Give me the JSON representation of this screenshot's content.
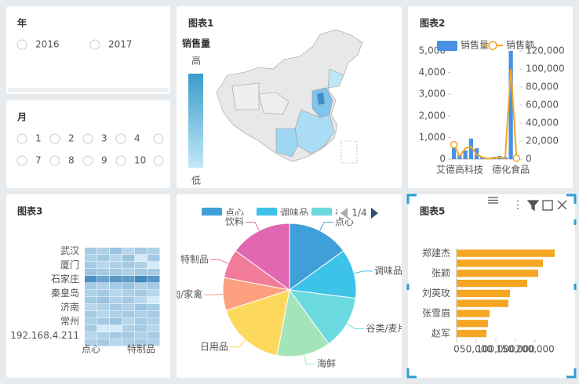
{
  "filters": {
    "year": {
      "title": "年",
      "options": [
        "2016",
        "2017"
      ]
    },
    "month": {
      "title": "月",
      "options": [
        "1",
        "2",
        "3",
        "4",
        "7",
        "8",
        "9",
        "10"
      ]
    }
  },
  "chart_data": [
    {
      "type": "map",
      "title": "图表1",
      "legend_title": "销售量",
      "legend_high": "高",
      "legend_low": "低"
    },
    {
      "type": "combo",
      "title": "图表2",
      "categories": [
        null,
        "艾德高科技",
        null,
        null,
        null,
        null,
        null,
        null,
        null,
        null,
        "德化食品",
        null
      ],
      "series": [
        {
          "name": "销售量",
          "kind": "bar",
          "color": "#4a90e2",
          "values": [
            600,
            200,
            400,
            950,
            500,
            100,
            50,
            100,
            150,
            100,
            5000,
            50
          ]
        },
        {
          "name": "销售额",
          "kind": "line",
          "axis": "y2",
          "color": "#f5a623",
          "values": [
            16000,
            3000,
            12000,
            14000,
            5000,
            2000,
            500,
            1000,
            2000,
            1000,
            100000,
            1000
          ]
        }
      ],
      "ylim": [
        0,
        5000
      ],
      "yticks": [
        0,
        {
          "value": 1000,
          "label": "1,000"
        },
        {
          "value": 2000,
          "label": "2,000"
        },
        {
          "value": 3000,
          "label": "3,000"
        },
        {
          "value": 4000,
          "label": "4,000"
        },
        {
          "value": 5000,
          "label": "5,000"
        }
      ],
      "y2lim": [
        0,
        120000
      ],
      "y2ticks": [
        0,
        {
          "value": 20000,
          "label": "20,000"
        },
        {
          "value": 40000,
          "label": "40,000"
        },
        {
          "value": 60000,
          "label": "60,000"
        },
        {
          "value": 80000,
          "label": "80,000"
        },
        {
          "value": 100000,
          "label": "100,000"
        },
        {
          "value": 120000,
          "label": "120,000"
        }
      ]
    },
    {
      "type": "heatmap",
      "title": "图表3",
      "x_categories": [
        "点心",
        null,
        null,
        null,
        "特制品",
        null
      ],
      "y_categories": [
        "武汉",
        null,
        "厦门",
        null,
        "石家庄",
        null,
        "秦皇岛",
        null,
        "济南",
        null,
        "常州",
        null,
        "192.168.4.211",
        null
      ],
      "color_range": [
        "#dff1fb",
        "#1c6fae"
      ],
      "value_range": [
        0,
        100
      ],
      "values": [
        [
          30,
          25,
          35,
          20,
          30,
          25
        ],
        [
          25,
          30,
          20,
          35,
          5,
          30
        ],
        [
          30,
          20,
          25,
          30,
          25,
          5
        ],
        [
          35,
          30,
          30,
          25,
          30,
          30
        ],
        [
          75,
          60,
          70,
          65,
          80,
          70
        ],
        [
          30,
          25,
          30,
          35,
          25,
          30
        ],
        [
          25,
          30,
          20,
          25,
          30,
          20
        ],
        [
          30,
          35,
          25,
          30,
          20,
          5
        ],
        [
          20,
          25,
          30,
          25,
          35,
          30
        ],
        [
          30,
          20,
          25,
          30,
          25,
          30
        ],
        [
          25,
          30,
          35,
          20,
          30,
          25
        ],
        [
          30,
          5,
          5,
          25,
          30,
          20
        ],
        [
          20,
          25,
          30,
          30,
          25,
          30
        ],
        [
          25,
          30,
          20,
          25,
          30,
          25
        ]
      ]
    },
    {
      "type": "pie",
      "legend_page": "1/4",
      "categories": [
        "点心",
        "调味品",
        "谷类/麦片",
        "海鲜",
        "日用品",
        "肉/家禽",
        "特制品",
        "饮料"
      ],
      "values": [
        15,
        12,
        13,
        13,
        17,
        8,
        7,
        15
      ],
      "colors": [
        "#3fa0d9",
        "#3ec3e8",
        "#6ad9e0",
        "#a4e4b9",
        "#fcd85c",
        "#fca07f",
        "#f27b9a",
        "#e067b0"
      ]
    },
    {
      "type": "hbar",
      "title": "图表5",
      "color": "#f5a623",
      "categories": [
        "郑建杰",
        null,
        "张颖",
        null,
        "刘英玫",
        null,
        "张雪眉",
        null,
        "赵军"
      ],
      "values": [
        250000,
        220000,
        208000,
        180000,
        136000,
        132000,
        84000,
        80000,
        76000
      ],
      "xlim": [
        0,
        250000
      ],
      "xticks": [
        0,
        {
          "value": 50000,
          "label": "50,000"
        },
        {
          "value": 100000,
          "label": "100,000"
        },
        {
          "value": 150000,
          "label": "150,000"
        },
        {
          "value": 200000,
          "label": "200,000"
        }
      ]
    }
  ]
}
